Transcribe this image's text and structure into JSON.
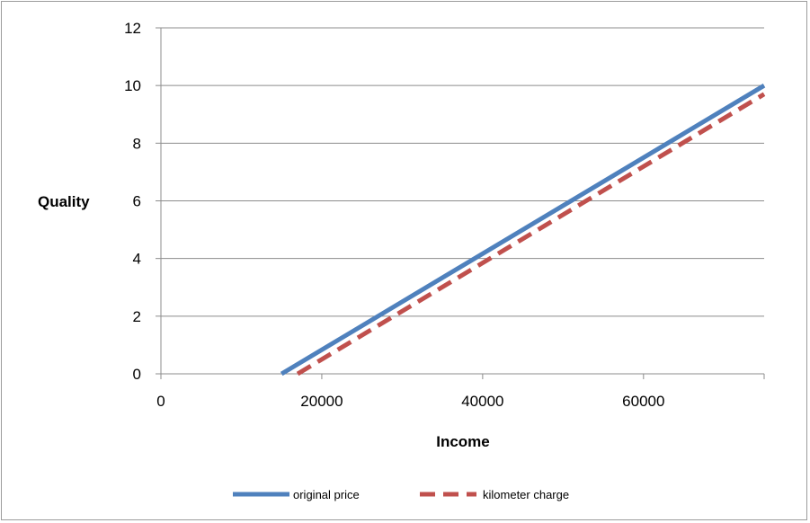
{
  "chart_data": {
    "type": "line",
    "title": "",
    "xlabel": "Income",
    "ylabel": "Quality",
    "xlim": [
      0,
      75000
    ],
    "ylim": [
      0,
      12
    ],
    "x_ticks": [
      "0",
      "20000",
      "40000",
      "60000"
    ],
    "x_tick_values": [
      0,
      20000,
      40000,
      60000
    ],
    "y_ticks": [
      "0",
      "2",
      "4",
      "6",
      "8",
      "10",
      "12"
    ],
    "y_tick_values": [
      0,
      2,
      4,
      6,
      8,
      10,
      12
    ],
    "grid": "horizontal",
    "legend_position": "bottom",
    "series": [
      {
        "name": "original price",
        "color": "#4f81bd",
        "style": "solid",
        "x": [
          15000,
          75000
        ],
        "y": [
          0,
          10
        ]
      },
      {
        "name": "kilometer charge",
        "color": "#c0504d",
        "style": "dashed",
        "x": [
          17000,
          75000
        ],
        "y": [
          0,
          9.7
        ]
      }
    ]
  }
}
